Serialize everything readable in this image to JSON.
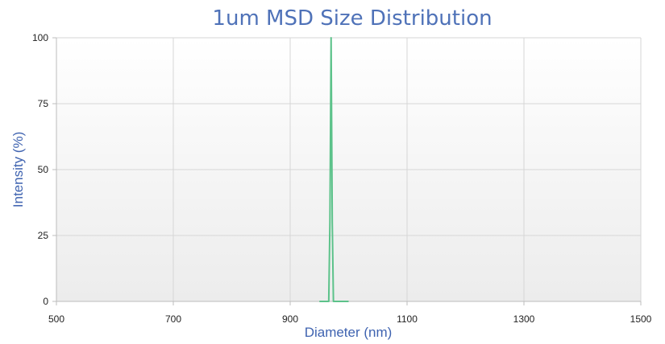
{
  "chart_data": {
    "type": "line",
    "title": "1um MSD Size Distribution",
    "xlabel": "Diameter (nm)",
    "ylabel": "Intensity (%)",
    "xlim": [
      500,
      1500
    ],
    "ylim": [
      0,
      100
    ],
    "x_ticks": [
      "500",
      "700",
      "900",
      "1100",
      "1300",
      "1500"
    ],
    "y_ticks": [
      "0",
      "25",
      "50",
      "75",
      "100"
    ],
    "grid": true,
    "series": [
      {
        "color": "#5cc28a",
        "x": [
          950,
          955,
          960,
          964,
          966,
          968,
          970,
          972,
          974,
          976,
          978,
          980,
          985,
          990,
          1000
        ],
        "y": [
          0,
          0,
          0,
          0,
          0,
          30,
          100,
          30,
          0,
          0,
          0,
          0,
          0,
          0,
          0
        ]
      }
    ]
  }
}
